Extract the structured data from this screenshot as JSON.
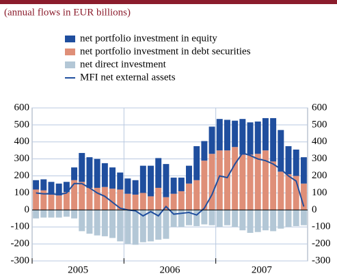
{
  "chart_data": {
    "type": "bar",
    "subtitle": "(annual flows in EUR billions)",
    "categories": [
      null,
      null,
      null,
      null,
      null,
      null,
      null,
      null,
      null,
      null,
      null,
      null,
      null,
      null,
      null,
      null,
      null,
      null,
      null,
      null,
      null,
      null,
      null,
      null,
      null,
      null,
      null,
      null,
      null,
      null,
      null,
      null,
      null,
      null,
      null,
      null
    ],
    "year_labels": [
      "2005",
      "2006",
      "2007"
    ],
    "series": [
      {
        "name": "net portfolio investment in equity",
        "color": "#1f4e9e",
        "stack": "pos",
        "values": [
          55,
          65,
          75,
          70,
          60,
          75,
          170,
          180,
          170,
          140,
          125,
          100,
          90,
          85,
          160,
          180,
          175,
          195,
          95,
          80,
          105,
          200,
          115,
          160,
          185,
          180,
          155,
          210,
          190,
          190,
          190,
          255,
          245,
          165,
          155,
          155
        ]
      },
      {
        "name": "net portfolio investment in debt securities",
        "color": "#df8f78",
        "stack": "pos",
        "base": true,
        "values": [
          120,
          115,
          90,
          85,
          105,
          175,
          165,
          130,
          130,
          135,
          125,
          120,
          95,
          90,
          100,
          80,
          130,
          75,
          95,
          110,
          155,
          175,
          290,
          330,
          350,
          350,
          370,
          325,
          325,
          330,
          350,
          285,
          225,
          210,
          200,
          155
        ]
      },
      {
        "name": "net direct investment",
        "color": "#b3c7d6",
        "stack": "neg",
        "values": [
          -50,
          -45,
          -45,
          -45,
          -40,
          -50,
          -125,
          -140,
          -150,
          -155,
          -165,
          -185,
          -200,
          -205,
          -190,
          -185,
          -175,
          -170,
          -100,
          -100,
          -90,
          -95,
          -85,
          -90,
          -100,
          -90,
          -100,
          -120,
          -135,
          -130,
          -120,
          -125,
          -110,
          -100,
          -95,
          -90
        ]
      },
      {
        "name": "MFI net external assets",
        "color": "#1f4e9e",
        "kind": "line",
        "values": [
          100,
          95,
          95,
          90,
          100,
          155,
          155,
          130,
          100,
          80,
          45,
          10,
          0,
          -5,
          -35,
          -10,
          -35,
          20,
          -25,
          -20,
          -15,
          -30,
          10,
          90,
          200,
          190,
          270,
          335,
          320,
          300,
          290,
          270,
          240,
          200,
          170,
          20
        ]
      }
    ],
    "ylim": [
      -300,
      600
    ],
    "yticks": [
      -300,
      -200,
      -100,
      0,
      100,
      200,
      300,
      400,
      500,
      600
    ],
    "y2lim": [
      -300,
      600
    ],
    "y2ticks": [
      -300,
      -200,
      -100,
      0,
      100,
      200,
      300,
      400,
      500,
      600
    ],
    "grid": true
  }
}
